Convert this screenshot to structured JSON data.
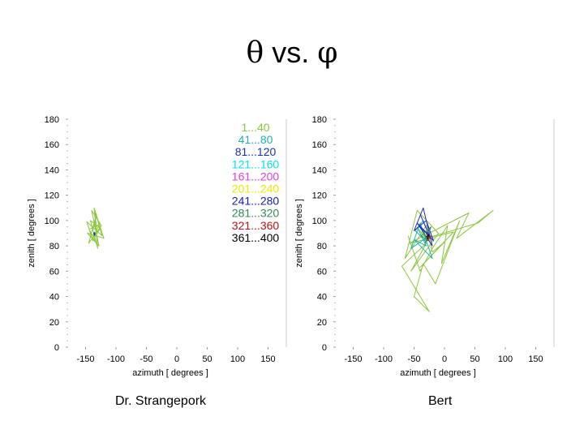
{
  "title": {
    "theta": "θ",
    "middle": " vs. ",
    "phi": "φ"
  },
  "captions": {
    "left": "Dr. Strangepork",
    "right": "Bert"
  },
  "chart_data": [
    {
      "type": "line",
      "xlabel": "azimuth [ degrees ]",
      "ylabel": "zenith [ degrees ]",
      "xlim": [
        -180,
        180
      ],
      "ylim": [
        0,
        180
      ],
      "xticks": [
        -150,
        -100,
        -50,
        0,
        50,
        100,
        150
      ],
      "yticks": [
        0,
        20,
        40,
        60,
        80,
        100,
        120,
        140,
        160,
        180
      ],
      "legend": {
        "placement": "top-right",
        "entries": [
          {
            "label": "1...40",
            "color": "#8dc63f"
          },
          {
            "label": "41...80",
            "color": "#20b2aa"
          },
          {
            "label": "81...120",
            "color": "#1f2fb4"
          },
          {
            "label": "121...160",
            "color": "#00e5ee"
          },
          {
            "label": "161...200",
            "color": "#e040e0"
          },
          {
            "label": "201...240",
            "color": "#e8e800"
          },
          {
            "label": "241...280",
            "color": "#1a1ab0"
          },
          {
            "label": "281...320",
            "color": "#2e8b57"
          },
          {
            "label": "321...360",
            "color": "#c01010"
          },
          {
            "label": "361...400",
            "color": "#000000"
          }
        ]
      },
      "series": [
        {
          "color": "#8dc63f",
          "x": [
            -138,
            -132,
            -145,
            -124,
            -140,
            -128,
            -147,
            -120,
            -136,
            -130,
            -142,
            -126,
            -138,
            -148,
            -123,
            -134,
            -131,
            -144,
            -127,
            -139
          ],
          "y": [
            92,
            105,
            82,
            96,
            108,
            80,
            90,
            86,
            110,
            78,
            100,
            94,
            84,
            99,
            88,
            107,
            81,
            93,
            97,
            86
          ]
        },
        {
          "color": "#1f2fb4",
          "x": [
            -136,
            -134,
            -137,
            -135
          ],
          "y": [
            91,
            89,
            90,
            88
          ]
        }
      ]
    },
    {
      "type": "line",
      "xlabel": "azimuth [ degrees ]",
      "ylabel": "zenith [ degrees ]",
      "xlim": [
        -180,
        180
      ],
      "ylim": [
        0,
        180
      ],
      "xticks": [
        -150,
        -100,
        -50,
        0,
        50,
        100,
        150
      ],
      "yticks": [
        0,
        20,
        40,
        60,
        80,
        100,
        120,
        140,
        160,
        180
      ],
      "series": [
        {
          "color": "#8dc63f",
          "x": [
            -60,
            -40,
            -20,
            5,
            -5,
            25,
            -15,
            -35,
            -50,
            -25,
            -70,
            -30,
            -55,
            -10,
            -45,
            -65,
            -30,
            -20,
            0,
            -40,
            15,
            -58,
            40,
            20,
            80,
            55,
            -30,
            -42
          ],
          "y": [
            88,
            60,
            78,
            96,
            66,
            100,
            50,
            66,
            40,
            28,
            64,
            82,
            60,
            90,
            108,
            70,
            96,
            75,
            83,
            63,
            91,
            82,
            106,
            86,
            108,
            98,
            86,
            93
          ]
        },
        {
          "color": "#20b2aa",
          "x": [
            -45,
            -30,
            -50,
            -20,
            -40,
            -55,
            -25,
            -35,
            -48,
            -28
          ],
          "y": [
            95,
            80,
            85,
            70,
            98,
            78,
            88,
            100,
            92,
            82
          ]
        },
        {
          "color": "#1f2fb4",
          "x": [
            -40,
            -25,
            -45,
            -20,
            -35,
            -50,
            -30,
            -18,
            -42,
            -28
          ],
          "y": [
            105,
            88,
            98,
            80,
            110,
            92,
            100,
            84,
            96,
            90
          ]
        },
        {
          "color": "#2e8b57",
          "x": [
            -35,
            -28,
            -38,
            -22,
            -32
          ],
          "y": [
            92,
            84,
            88,
            95,
            82
          ]
        },
        {
          "color": "#c01010",
          "x": [
            -30,
            -25,
            -28,
            -22
          ],
          "y": [
            90,
            86,
            84,
            88
          ]
        },
        {
          "color": "#000000",
          "x": [
            -30,
            -26,
            -28
          ],
          "y": [
            87,
            89,
            85
          ]
        }
      ]
    }
  ]
}
